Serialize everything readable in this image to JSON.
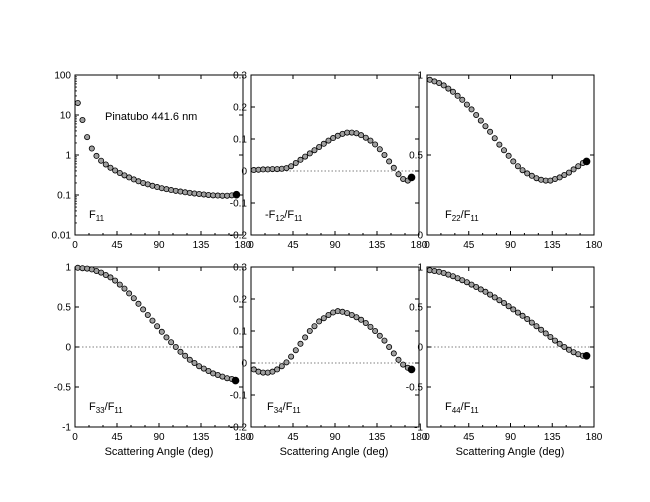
{
  "xlabel": "Scattering Angle (deg)",
  "annotation": "Pinatubo 441.6 nm",
  "colors": {
    "marker_fill": "#a0a0a0",
    "marker_stroke": "#000000",
    "end_marker": "#000000"
  },
  "chart_data": [
    {
      "type": "scatter",
      "label_main": "F",
      "label_sub1": "11",
      "label_post": "",
      "yscale": "log",
      "xlim": [
        0,
        180
      ],
      "ylim": [
        0.01,
        100
      ],
      "xticks": [
        0,
        45,
        90,
        135,
        180
      ],
      "xtick_labels": [
        "0",
        "45",
        "90",
        "135",
        "180"
      ],
      "yticks": [
        0.01,
        0.1,
        1,
        10,
        100
      ],
      "ytick_labels": [
        "0.01",
        "0.1",
        "1",
        "10",
        "100"
      ],
      "zero_line": false,
      "x": [
        3,
        8,
        13,
        18,
        23,
        28,
        33,
        38,
        43,
        48,
        53,
        58,
        63,
        68,
        73,
        78,
        83,
        88,
        93,
        98,
        103,
        108,
        113,
        118,
        123,
        128,
        133,
        138,
        143,
        148,
        153,
        158,
        163,
        168
      ],
      "y": [
        20,
        7.5,
        2.8,
        1.45,
        0.95,
        0.72,
        0.58,
        0.48,
        0.41,
        0.355,
        0.31,
        0.275,
        0.245,
        0.22,
        0.2,
        0.185,
        0.17,
        0.158,
        0.148,
        0.14,
        0.133,
        0.127,
        0.122,
        0.117,
        0.113,
        0.109,
        0.106,
        0.103,
        0.1,
        0.098,
        0.097,
        0.096,
        0.096,
        0.098
      ],
      "end_x": [
        173
      ],
      "end_y": [
        0.102
      ]
    },
    {
      "type": "scatter",
      "label_main": "-F",
      "label_sub1": "12",
      "label_post": "/F",
      "label_sub2": "11",
      "yscale": "linear",
      "xlim": [
        0,
        180
      ],
      "ylim": [
        -0.2,
        0.3
      ],
      "xticks": [
        0,
        45,
        90,
        135,
        180
      ],
      "xtick_labels": [
        "0",
        "45",
        "90",
        "135",
        "180"
      ],
      "yticks": [
        -0.2,
        -0.1,
        0,
        0.1,
        0.2,
        0.3
      ],
      "ytick_labels": [
        "-0.2",
        "-0.1",
        "0",
        "0.1",
        "0.2",
        "0.3"
      ],
      "zero_line": true,
      "x": [
        3,
        8,
        13,
        18,
        23,
        28,
        33,
        38,
        43,
        48,
        53,
        58,
        63,
        68,
        73,
        78,
        83,
        88,
        93,
        98,
        103,
        108,
        113,
        118,
        123,
        128,
        133,
        138,
        143,
        148,
        153,
        158,
        163,
        168
      ],
      "y": [
        0.003,
        0.004,
        0.005,
        0.005,
        0.006,
        0.006,
        0.007,
        0.009,
        0.015,
        0.025,
        0.035,
        0.045,
        0.055,
        0.065,
        0.075,
        0.085,
        0.095,
        0.103,
        0.11,
        0.116,
        0.12,
        0.12,
        0.118,
        0.112,
        0.104,
        0.095,
        0.083,
        0.068,
        0.05,
        0.03,
        0.01,
        -0.01,
        -0.025,
        -0.03
      ],
      "end_x": [
        172
      ],
      "end_y": [
        -0.02
      ]
    },
    {
      "type": "scatter",
      "label_main": "F",
      "label_sub1": "22",
      "label_post": "/F",
      "label_sub2": "11",
      "yscale": "linear",
      "xlim": [
        0,
        180
      ],
      "ylim": [
        0,
        1
      ],
      "xticks": [
        0,
        45,
        90,
        135,
        180
      ],
      "xtick_labels": [
        "0",
        "45",
        "90",
        "135",
        "180"
      ],
      "yticks": [
        0,
        0.5,
        1
      ],
      "ytick_labels": [
        "0",
        "0.5",
        "1"
      ],
      "zero_line": false,
      "x": [
        3,
        8,
        13,
        18,
        23,
        28,
        33,
        38,
        43,
        48,
        53,
        58,
        63,
        68,
        73,
        78,
        83,
        88,
        93,
        98,
        103,
        108,
        113,
        118,
        123,
        128,
        133,
        138,
        143,
        148,
        153,
        158,
        163,
        168
      ],
      "y": [
        0.97,
        0.96,
        0.95,
        0.935,
        0.915,
        0.895,
        0.87,
        0.845,
        0.815,
        0.785,
        0.75,
        0.715,
        0.68,
        0.645,
        0.605,
        0.565,
        0.53,
        0.495,
        0.46,
        0.43,
        0.405,
        0.385,
        0.37,
        0.355,
        0.345,
        0.34,
        0.34,
        0.35,
        0.36,
        0.375,
        0.39,
        0.41,
        0.43,
        0.45
      ],
      "end_x": [
        172
      ],
      "end_y": [
        0.46
      ]
    },
    {
      "type": "scatter",
      "label_main": "F",
      "label_sub1": "33",
      "label_post": "/F",
      "label_sub2": "11",
      "yscale": "linear",
      "xlim": [
        0,
        180
      ],
      "ylim": [
        -1,
        1
      ],
      "xticks": [
        0,
        45,
        90,
        135,
        180
      ],
      "xtick_labels": [
        "0",
        "45",
        "90",
        "135",
        "180"
      ],
      "yticks": [
        -1,
        -0.5,
        0,
        0.5,
        1
      ],
      "ytick_labels": [
        "-1",
        "-0.5",
        "0",
        "0.5",
        "1"
      ],
      "zero_line": true,
      "x": [
        3,
        8,
        13,
        18,
        23,
        28,
        33,
        38,
        43,
        48,
        53,
        58,
        63,
        68,
        73,
        78,
        83,
        88,
        93,
        98,
        103,
        108,
        113,
        118,
        123,
        128,
        133,
        138,
        143,
        148,
        153,
        158,
        163,
        168
      ],
      "y": [
        0.99,
        0.985,
        0.98,
        0.97,
        0.95,
        0.93,
        0.9,
        0.87,
        0.83,
        0.78,
        0.73,
        0.67,
        0.61,
        0.54,
        0.47,
        0.4,
        0.33,
        0.26,
        0.19,
        0.12,
        0.06,
        0.0,
        -0.06,
        -0.11,
        -0.16,
        -0.2,
        -0.24,
        -0.27,
        -0.3,
        -0.33,
        -0.35,
        -0.37,
        -0.39,
        -0.4
      ],
      "end_x": [
        172
      ],
      "end_y": [
        -0.42
      ]
    },
    {
      "type": "scatter",
      "label_main": "F",
      "label_sub1": "34",
      "label_post": "/F",
      "label_sub2": "11",
      "yscale": "linear",
      "xlim": [
        0,
        180
      ],
      "ylim": [
        -0.2,
        0.3
      ],
      "xticks": [
        0,
        45,
        90,
        135,
        180
      ],
      "xtick_labels": [
        "0",
        "45",
        "90",
        "135",
        "180"
      ],
      "yticks": [
        -0.2,
        -0.1,
        0,
        0.1,
        0.2,
        0.3
      ],
      "ytick_labels": [
        "-0.2",
        "-0.1",
        "0",
        "0.1",
        "0.2",
        "0.3"
      ],
      "zero_line": true,
      "x": [
        3,
        8,
        13,
        18,
        23,
        28,
        33,
        38,
        43,
        48,
        53,
        58,
        63,
        68,
        73,
        78,
        83,
        88,
        93,
        98,
        103,
        108,
        113,
        118,
        123,
        128,
        133,
        138,
        143,
        148,
        153,
        158,
        163,
        168
      ],
      "y": [
        -0.02,
        -0.027,
        -0.03,
        -0.03,
        -0.027,
        -0.02,
        -0.01,
        0.002,
        0.02,
        0.04,
        0.06,
        0.08,
        0.1,
        0.115,
        0.13,
        0.14,
        0.15,
        0.158,
        0.162,
        0.16,
        0.156,
        0.15,
        0.143,
        0.135,
        0.125,
        0.113,
        0.1,
        0.085,
        0.07,
        0.05,
        0.03,
        0.01,
        -0.005,
        -0.015
      ],
      "end_x": [
        172
      ],
      "end_y": [
        -0.02
      ]
    },
    {
      "type": "scatter",
      "label_main": "F",
      "label_sub1": "44",
      "label_post": "/F",
      "label_sub2": "11",
      "yscale": "linear",
      "xlim": [
        0,
        180
      ],
      "ylim": [
        -1,
        1
      ],
      "xticks": [
        0,
        45,
        90,
        135,
        180
      ],
      "xtick_labels": [
        "0",
        "45",
        "90",
        "135",
        "180"
      ],
      "yticks": [
        -1,
        -0.5,
        0,
        0.5,
        1
      ],
      "ytick_labels": [
        "-1",
        "-0.5",
        "0",
        "0.5",
        "1"
      ],
      "zero_line": true,
      "x": [
        3,
        8,
        13,
        18,
        23,
        28,
        33,
        38,
        43,
        48,
        53,
        58,
        63,
        68,
        73,
        78,
        83,
        88,
        93,
        98,
        103,
        108,
        113,
        118,
        123,
        128,
        133,
        138,
        143,
        148,
        153,
        158,
        163,
        168
      ],
      "y": [
        0.96,
        0.95,
        0.94,
        0.925,
        0.905,
        0.885,
        0.86,
        0.835,
        0.81,
        0.78,
        0.75,
        0.72,
        0.69,
        0.655,
        0.62,
        0.585,
        0.55,
        0.51,
        0.47,
        0.43,
        0.39,
        0.35,
        0.305,
        0.26,
        0.215,
        0.17,
        0.125,
        0.08,
        0.04,
        0.0,
        -0.035,
        -0.065,
        -0.09,
        -0.11
      ],
      "end_x": [
        172
      ],
      "end_y": [
        -0.11
      ]
    }
  ]
}
